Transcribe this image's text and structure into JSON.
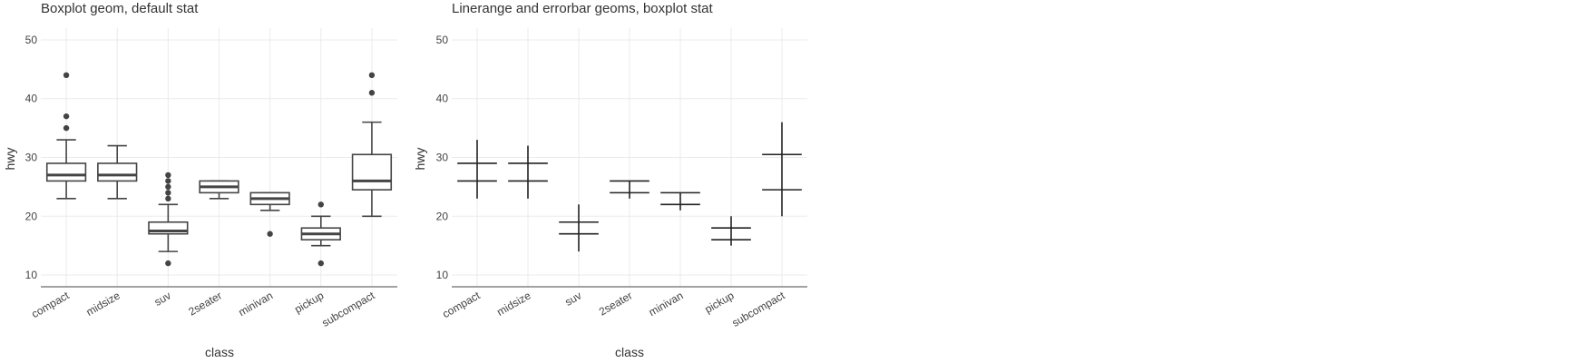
{
  "chart_data": [
    {
      "type": "boxplot",
      "title": "Boxplot geom, default stat",
      "xlabel": "class",
      "ylabel": "hwy",
      "ylim": [
        8,
        52
      ],
      "yticks": [
        10,
        20,
        30,
        40,
        50
      ],
      "grid": true,
      "categories": [
        "compact",
        "midsize",
        "suv",
        "2seater",
        "minivan",
        "pickup",
        "subcompact"
      ],
      "boxes": [
        {
          "category": "compact",
          "whisker_low": 23,
          "q1": 26,
          "median": 27,
          "q3": 29,
          "whisker_high": 33,
          "outliers": [
            35,
            37,
            44
          ]
        },
        {
          "category": "midsize",
          "whisker_low": 23,
          "q1": 26,
          "median": 27,
          "q3": 29,
          "whisker_high": 32,
          "outliers": []
        },
        {
          "category": "suv",
          "whisker_low": 14,
          "q1": 17,
          "median": 17.5,
          "q3": 19,
          "whisker_high": 22,
          "outliers": [
            12,
            23,
            24,
            25,
            26,
            27
          ]
        },
        {
          "category": "2seater",
          "whisker_low": 23,
          "q1": 24,
          "median": 25,
          "q3": 26,
          "whisker_high": 26,
          "outliers": []
        },
        {
          "category": "minivan",
          "whisker_low": 21,
          "q1": 22,
          "median": 23,
          "q3": 24,
          "whisker_high": 24,
          "outliers": [
            17
          ]
        },
        {
          "category": "pickup",
          "whisker_low": 15,
          "q1": 16,
          "median": 17,
          "q3": 18,
          "whisker_high": 20,
          "outliers": [
            12,
            22
          ]
        },
        {
          "category": "subcompact",
          "whisker_low": 20,
          "q1": 24.5,
          "median": 26,
          "q3": 30.5,
          "whisker_high": 36,
          "outliers": [
            41,
            44
          ]
        }
      ]
    },
    {
      "type": "errorbar",
      "title": "Linerange and errorbar geoms, boxplot stat",
      "xlabel": "class",
      "ylabel": "hwy",
      "ylim": [
        8,
        52
      ],
      "yticks": [
        10,
        20,
        30,
        40,
        50
      ],
      "grid": true,
      "categories": [
        "compact",
        "midsize",
        "suv",
        "2seater",
        "minivan",
        "pickup",
        "subcompact"
      ],
      "ranges": [
        {
          "category": "compact",
          "ymin": 23,
          "lower": 26,
          "upper": 29,
          "ymax": 33
        },
        {
          "category": "midsize",
          "ymin": 23,
          "lower": 26,
          "upper": 29,
          "ymax": 32
        },
        {
          "category": "suv",
          "ymin": 14,
          "lower": 17,
          "upper": 19,
          "ymax": 22
        },
        {
          "category": "2seater",
          "ymin": 23,
          "lower": 24,
          "upper": 26,
          "ymax": 26
        },
        {
          "category": "minivan",
          "ymin": 21,
          "lower": 22,
          "upper": 24,
          "ymax": 24
        },
        {
          "category": "pickup",
          "ymin": 15,
          "lower": 16,
          "upper": 18,
          "ymax": 20
        },
        {
          "category": "subcompact",
          "ymin": 20,
          "lower": 24.5,
          "upper": 30.5,
          "ymax": 36
        }
      ]
    }
  ]
}
